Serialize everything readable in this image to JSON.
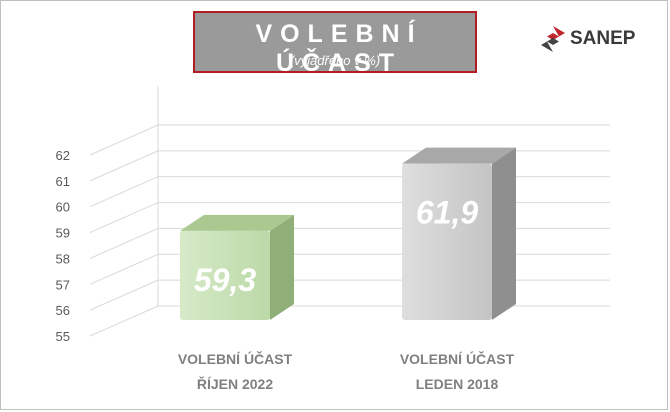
{
  "title": {
    "main": "VOLEBNÍ ÚČAST",
    "subtitle": "(vyjádřeno v %)"
  },
  "logo": {
    "text": "SANEP"
  },
  "chart_data": {
    "type": "bar",
    "categories": [
      [
        "VOLEBNÍ ÚČAST",
        "ŘÍJEN 2022"
      ],
      [
        "VOLEBNÍ ÚČAST",
        "LEDEN 2018"
      ]
    ],
    "values": [
      59.3,
      61.9
    ],
    "value_labels": [
      "59,3",
      "61,9"
    ],
    "ylim": [
      55,
      62
    ],
    "yticks": [
      "55",
      "56",
      "57",
      "58",
      "59",
      "60",
      "61",
      "62"
    ],
    "grid": true,
    "colors": {
      "bar1": "#c6e0b4",
      "bar2": "#d0d0d0",
      "title_border": "#b01e23",
      "title_bg": "#9a9a9a",
      "logo_red": "#c0282d"
    }
  }
}
